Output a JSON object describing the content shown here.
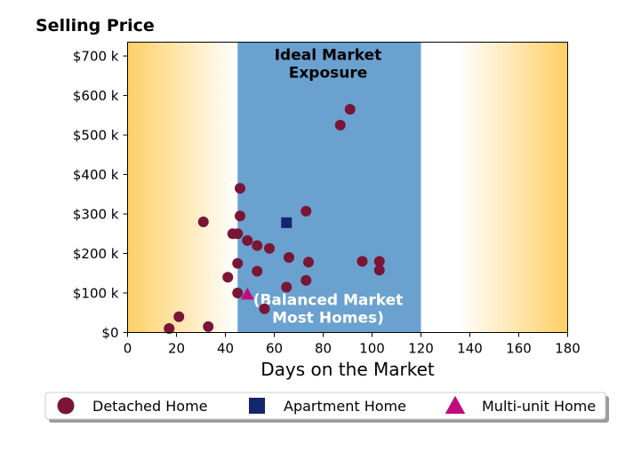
{
  "chart_data": {
    "type": "scatter",
    "title": "Selling Price",
    "xlabel": "Days on the Market",
    "ylabel": "",
    "xlim": [
      0,
      180
    ],
    "ylim": [
      0,
      735000
    ],
    "x_ticks": [
      0,
      20,
      40,
      60,
      80,
      100,
      120,
      140,
      160,
      180
    ],
    "y_ticks": [
      0,
      100000,
      200000,
      300000,
      400000,
      500000,
      600000,
      700000
    ],
    "y_tick_labels": [
      "$0",
      "$100 k",
      "$200 k",
      "$300 k",
      "$400 k",
      "$500 k",
      "$600 k",
      "$700 k"
    ],
    "grid": false,
    "legend_placement": "bottom",
    "bands": [
      {
        "x_start": 45,
        "x_end": 120,
        "color": "#6aa1cf"
      }
    ],
    "background_gradient_color": "#ffcf66",
    "annotations": [
      {
        "label": "Ideal Market\nExposure",
        "x": 82,
        "y": 690000,
        "color": "#000000"
      },
      {
        "label": "(Balanced Market\nMost Homes)",
        "x": 82,
        "y": 70000,
        "color": "#ffffff"
      }
    ],
    "series": [
      {
        "name": "Detached Home",
        "marker": "circle",
        "color": "#7a1535",
        "points": [
          [
            17,
            10000
          ],
          [
            21,
            40000
          ],
          [
            33,
            15000
          ],
          [
            31,
            280000
          ],
          [
            41,
            140000
          ],
          [
            43,
            250000
          ],
          [
            45,
            175000
          ],
          [
            45,
            100000
          ],
          [
            45,
            250000
          ],
          [
            46,
            365000
          ],
          [
            46,
            295000
          ],
          [
            49,
            233000
          ],
          [
            53,
            220000
          ],
          [
            53,
            155000
          ],
          [
            56,
            60000
          ],
          [
            58,
            213000
          ],
          [
            65,
            115000
          ],
          [
            66,
            190000
          ],
          [
            73,
            307000
          ],
          [
            73,
            132000
          ],
          [
            74,
            178000
          ],
          [
            87,
            525000
          ],
          [
            91,
            565000
          ],
          [
            96,
            180000
          ],
          [
            103,
            180000
          ],
          [
            103,
            158000
          ]
        ]
      },
      {
        "name": "Apartment Home",
        "marker": "square",
        "color": "#15246e",
        "points": [
          [
            65,
            278000
          ]
        ]
      },
      {
        "name": "Multi-unit Home",
        "marker": "triangle",
        "color": "#c20c7e",
        "points": [
          [
            49,
            97000
          ]
        ]
      }
    ]
  }
}
